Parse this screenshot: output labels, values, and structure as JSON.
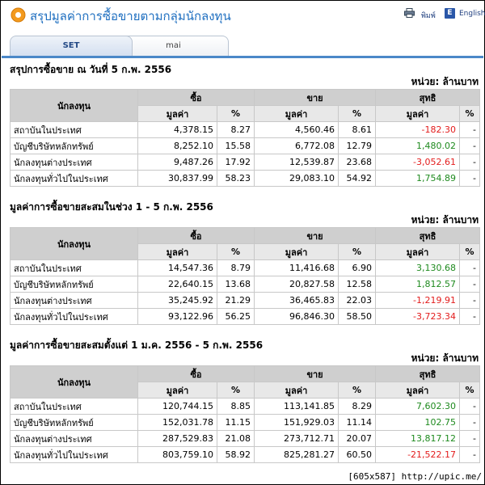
{
  "header": {
    "title": "สรุปมูลค่าการซื้อขายตามกลุ่มนักลงทุน",
    "print_label": "พิมพ์",
    "english_label": "English",
    "english_icon_letter": "E"
  },
  "tabs": [
    {
      "label": "SET",
      "active": true
    },
    {
      "label": "mai",
      "active": false
    }
  ],
  "columns": {
    "investor": "นักลงทุน",
    "buy": "ซื้อ",
    "sell": "ขาย",
    "net": "สุทธิ",
    "value": "มูลค่า",
    "pct": "%"
  },
  "unit_label": "หน่วย: ล้านบาท",
  "sections": [
    {
      "title": "สรุปการซื้อขาย ณ วันที่ 5 ก.พ. 2556",
      "rows": [
        {
          "name": "สถาบันในประเทศ",
          "buy": "4,378.15",
          "buy_pct": "8.27",
          "sell": "4,560.46",
          "sell_pct": "8.61",
          "net": "-182.30",
          "net_pct": "-"
        },
        {
          "name": "บัญชีบริษัทหลักทรัพย์",
          "buy": "8,252.10",
          "buy_pct": "15.58",
          "sell": "6,772.08",
          "sell_pct": "12.79",
          "net": "1,480.02",
          "net_pct": "-"
        },
        {
          "name": "นักลงทุนต่างประเทศ",
          "buy": "9,487.26",
          "buy_pct": "17.92",
          "sell": "12,539.87",
          "sell_pct": "23.68",
          "net": "-3,052.61",
          "net_pct": "-"
        },
        {
          "name": "นักลงทุนทั่วไปในประเทศ",
          "buy": "30,837.99",
          "buy_pct": "58.23",
          "sell": "29,083.10",
          "sell_pct": "54.92",
          "net": "1,754.89",
          "net_pct": "-"
        }
      ]
    },
    {
      "title": "มูลค่าการซื้อขายสะสมในช่วง 1 - 5 ก.พ. 2556",
      "rows": [
        {
          "name": "สถาบันในประเทศ",
          "buy": "14,547.36",
          "buy_pct": "8.79",
          "sell": "11,416.68",
          "sell_pct": "6.90",
          "net": "3,130.68",
          "net_pct": "-"
        },
        {
          "name": "บัญชีบริษัทหลักทรัพย์",
          "buy": "22,640.15",
          "buy_pct": "13.68",
          "sell": "20,827.58",
          "sell_pct": "12.58",
          "net": "1,812.57",
          "net_pct": "-"
        },
        {
          "name": "นักลงทุนต่างประเทศ",
          "buy": "35,245.92",
          "buy_pct": "21.29",
          "sell": "36,465.83",
          "sell_pct": "22.03",
          "net": "-1,219.91",
          "net_pct": "-"
        },
        {
          "name": "นักลงทุนทั่วไปในประเทศ",
          "buy": "93,122.96",
          "buy_pct": "56.25",
          "sell": "96,846.30",
          "sell_pct": "58.50",
          "net": "-3,723.34",
          "net_pct": "-"
        }
      ]
    },
    {
      "title": "มูลค่าการซื้อขายสะสมตั้งแต่ 1 ม.ค. 2556 - 5 ก.พ. 2556",
      "rows": [
        {
          "name": "สถาบันในประเทศ",
          "buy": "120,744.15",
          "buy_pct": "8.85",
          "sell": "113,141.85",
          "sell_pct": "8.29",
          "net": "7,602.30",
          "net_pct": "-"
        },
        {
          "name": "บัญชีบริษัทหลักทรัพย์",
          "buy": "152,031.78",
          "buy_pct": "11.15",
          "sell": "151,929.03",
          "sell_pct": "11.14",
          "net": "102.75",
          "net_pct": "-"
        },
        {
          "name": "นักลงทุนต่างประเทศ",
          "buy": "287,529.83",
          "buy_pct": "21.08",
          "sell": "273,712.71",
          "sell_pct": "20.07",
          "net": "13,817.12",
          "net_pct": "-"
        },
        {
          "name": "นักลงทุนทั่วไปในประเทศ",
          "buy": "803,759.10",
          "buy_pct": "58.92",
          "sell": "825,281.27",
          "sell_pct": "60.50",
          "net": "-21,522.17",
          "net_pct": "-"
        }
      ]
    }
  ],
  "footer": "[605x587] http://upic.me/",
  "colors": {
    "title": "#1f6fc0",
    "positive": "#1e8a1e",
    "negative": "#e31c1c",
    "tab_line": "#4b88c8"
  }
}
